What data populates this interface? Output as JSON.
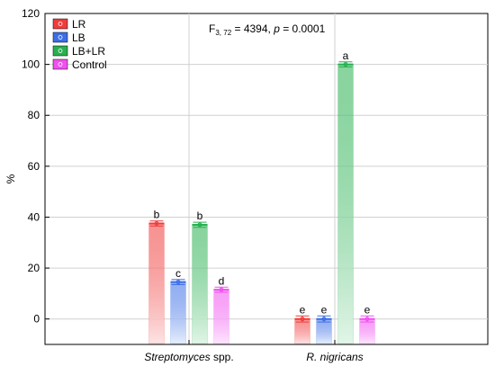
{
  "chart_data": {
    "type": "bar",
    "ylabel": "%",
    "ylim": [
      -10,
      120
    ],
    "yticks": [
      0,
      20,
      40,
      60,
      80,
      100,
      120
    ],
    "grid": true,
    "legend_position": "top-left",
    "stat_text": {
      "prefix": "F",
      "subscript": "3, 72",
      "rest": " = 4394, ",
      "p_symbol": "p",
      "p_rest": " = 0.0001"
    },
    "categories": [
      {
        "name": "Streptomyces",
        "suffix": " spp."
      },
      {
        "name": "R. nigricans",
        "suffix": ""
      }
    ],
    "series": [
      {
        "name": "LR",
        "color": "#f03c3c",
        "light": "#fde4e4",
        "values": [
          37.5,
          0
        ],
        "errors": [
          1.0,
          1.2
        ],
        "letters": [
          "b",
          "e"
        ]
      },
      {
        "name": "LB",
        "color": "#3c6ee6",
        "light": "#e6eefc",
        "values": [
          14.5,
          0
        ],
        "errors": [
          1.0,
          1.2
        ],
        "letters": [
          "c",
          "e"
        ]
      },
      {
        "name": "LB+LR",
        "color": "#28b050",
        "light": "#e2f5e8",
        "values": [
          37.0,
          100
        ],
        "errors": [
          1.0,
          1.0
        ],
        "letters": [
          "b",
          "a"
        ]
      },
      {
        "name": "Control",
        "color": "#f050f0",
        "light": "#fde6fd",
        "values": [
          11.5,
          0
        ],
        "errors": [
          1.0,
          1.2
        ],
        "letters": [
          "d",
          "e"
        ]
      }
    ]
  }
}
